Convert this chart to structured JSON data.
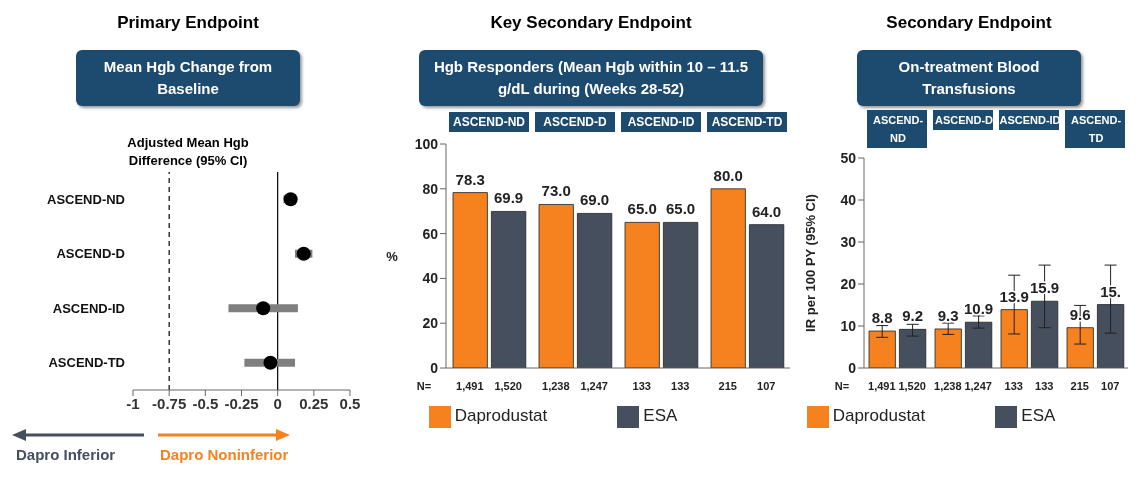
{
  "chart_data": [
    {
      "type": "scatter",
      "title": "Primary Endpoint",
      "subtitle": "Mean Hgb Change from Baseline",
      "xlabel": "Adjusted Mean Hgb Difference (95% CI)",
      "orientation": "horizontal",
      "categories": [
        "ASCEND-ND",
        "ASCEND-D",
        "ASCEND-ID",
        "ASCEND-TD"
      ],
      "values": [
        0.09,
        0.18,
        -0.1,
        -0.05
      ],
      "errors": [
        [
          0.04,
          0.1
        ],
        [
          0.12,
          0.24
        ],
        [
          -0.34,
          0.14
        ],
        [
          -0.23,
          0.12
        ]
      ],
      "color": "#000000",
      "marker": "circle",
      "xlim": [
        -1,
        0.5
      ],
      "xticks": [
        -1,
        -0.75,
        -0.5,
        -0.25,
        0,
        0.25,
        0.5
      ],
      "ref_lines": [
        {
          "axis": "x",
          "value": -0.75,
          "line_style": "dashed",
          "color": "#000000"
        },
        {
          "axis": "x",
          "value": 0,
          "line_style": "solid",
          "color": "#000000"
        }
      ],
      "annotations": [
        "Dapro Inferior",
        "Dapro Noninferior"
      ],
      "grid": false
    },
    {
      "type": "bar",
      "title": "Key Secondary Endpoint",
      "subtitle": "Hgb Responders (Mean Hgb within 10 – 11.5 g/dL during (Weeks 28-52)",
      "ylabel": "%",
      "categories": [
        "ASCEND-ND",
        "ASCEND-D",
        "ASCEND-ID",
        "ASCEND-TD"
      ],
      "series": [
        {
          "name": "Daprodustat",
          "color": "#f5821f",
          "values": [
            78.3,
            73.0,
            65.0,
            80.0
          ],
          "value_labels": [
            "78.3",
            "73.0",
            "65.0",
            "80.0"
          ]
        },
        {
          "name": "ESA",
          "color": "#454f5e",
          "values": [
            69.9,
            69.0,
            65.0,
            64.0
          ],
          "value_labels": [
            "69.9",
            "69.0",
            "65.0",
            "64.0"
          ]
        }
      ],
      "ylim": [
        0,
        100
      ],
      "yticks": [
        0,
        20,
        40,
        60,
        80,
        100
      ],
      "annotations": [
        "N=",
        "1,491",
        "1,520",
        "1,238",
        "1,247",
        "133",
        "133",
        "215",
        "107"
      ],
      "legend": "bottom",
      "grid": false
    },
    {
      "type": "bar",
      "title": "Secondary Endpoint",
      "subtitle": "On-treatment Blood Transfusions",
      "ylabel": "IR per 100 PY (95% CI)",
      "categories": [
        "ASCEND-ND",
        "ASCEND-D",
        "ASCEND-ID",
        "ASCEND-TD"
      ],
      "series": [
        {
          "name": "Daprodustat",
          "color": "#f5821f",
          "values": [
            8.8,
            9.3,
            13.9,
            9.6
          ],
          "value_labels": [
            "8.8",
            "9.3",
            "13.9",
            "9.6"
          ],
          "errors": [
            [
              7.3,
              10.1
            ],
            [
              8.0,
              10.7
            ],
            [
              8.1,
              22.1
            ],
            [
              5.7,
              14.9
            ]
          ]
        },
        {
          "name": "ESA",
          "color": "#454f5e",
          "values": [
            9.2,
            10.9,
            15.9,
            15.1
          ],
          "value_labels": [
            "9.2",
            "10.9",
            "15.9",
            "15."
          ],
          "errors": [
            [
              7.6,
              10.4
            ],
            [
              9.5,
              12.4
            ],
            [
              9.6,
              24.5
            ],
            [
              8.3,
              24.5
            ]
          ]
        }
      ],
      "ylim": [
        0,
        50
      ],
      "yticks": [
        0,
        10,
        20,
        30,
        40,
        50
      ],
      "annotations": [
        "N=",
        "1,491",
        "1,520",
        "1,238",
        "1,247",
        "133",
        "133",
        "215",
        "107"
      ],
      "legend": "bottom",
      "grid": false
    }
  ]
}
